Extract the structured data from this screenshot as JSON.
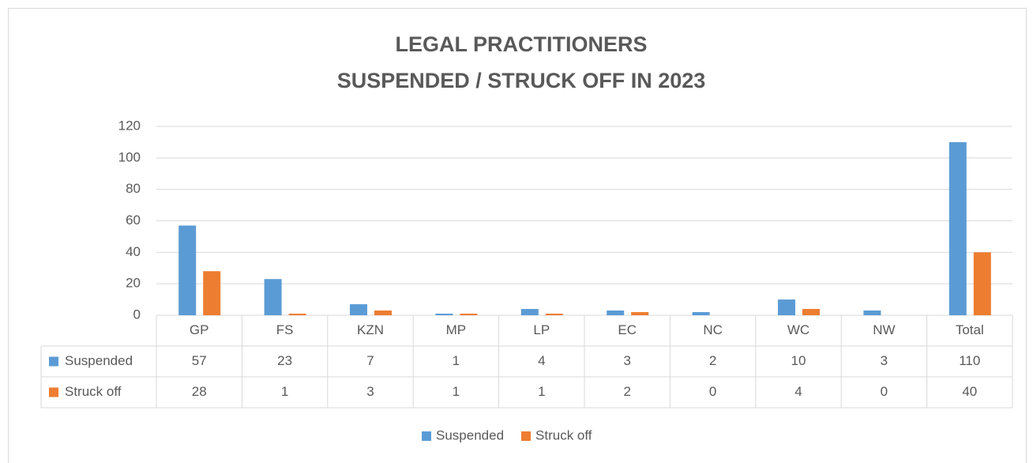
{
  "chart_data": {
    "type": "bar",
    "title": [
      "LEGAL PRACTITIONERS",
      "SUSPENDED / STRUCK OFF IN 2023"
    ],
    "categories": [
      "GP",
      "FS",
      "KZN",
      "MP",
      "LP",
      "EC",
      "NC",
      "WC",
      "NW",
      "Total"
    ],
    "series": [
      {
        "name": "Suspended",
        "color": "#5b9bd5",
        "values": [
          57,
          23,
          7,
          1,
          4,
          3,
          2,
          10,
          3,
          110
        ]
      },
      {
        "name": "Struck off",
        "color": "#ed7d31",
        "values": [
          28,
          1,
          3,
          1,
          1,
          2,
          0,
          4,
          0,
          40
        ]
      }
    ],
    "ylim": [
      0,
      120
    ],
    "yticks": [
      0,
      20,
      40,
      60,
      80,
      100,
      120
    ],
    "grid": true,
    "legend": "bottom"
  }
}
